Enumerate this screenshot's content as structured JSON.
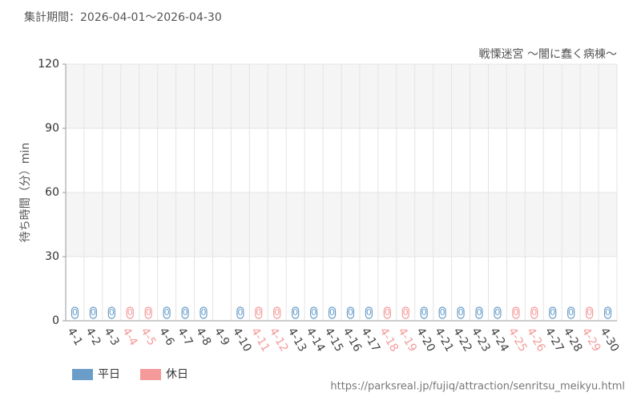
{
  "chart_data": {
    "type": "bar",
    "title": "集計期間：2026-04-01〜2026-04-30",
    "subtitle": "戦慄迷宮 〜闇に蠢く病棟〜",
    "y_label": "待ち時間（分）min",
    "source": "https://parksreal.jp/fujiq/attraction/senritsu_meikyu.html",
    "categories": [
      "4-1",
      "4-2",
      "4-3",
      "4-4",
      "4-5",
      "4-6",
      "4-7",
      "4-8",
      "4-9",
      "4-10",
      "4-11",
      "4-12",
      "4-13",
      "4-14",
      "4-15",
      "4-16",
      "4-17",
      "4-18",
      "4-19",
      "4-20",
      "4-21",
      "4-22",
      "4-23",
      "4-24",
      "4-25",
      "4-26",
      "4-27",
      "4-28",
      "4-29",
      "4-30"
    ],
    "series": [
      {
        "name": "平日",
        "color": "#6a9ec9",
        "values": [
          0,
          0,
          0,
          null,
          null,
          0,
          0,
          0,
          null,
          0,
          null,
          null,
          0,
          0,
          0,
          0,
          0,
          null,
          null,
          0,
          0,
          0,
          0,
          0,
          null,
          null,
          0,
          0,
          null,
          0
        ]
      },
      {
        "name": "休日",
        "color": "#f59a9a",
        "values": [
          null,
          null,
          null,
          0,
          0,
          null,
          null,
          null,
          null,
          null,
          0,
          0,
          null,
          null,
          null,
          null,
          null,
          0,
          0,
          null,
          null,
          null,
          null,
          null,
          0,
          0,
          null,
          null,
          0,
          null
        ]
      }
    ],
    "ylim": [
      0,
      120
    ],
    "yticks": [
      0,
      30,
      60,
      90,
      120
    ],
    "grid": true,
    "legend": "bottom-left"
  }
}
